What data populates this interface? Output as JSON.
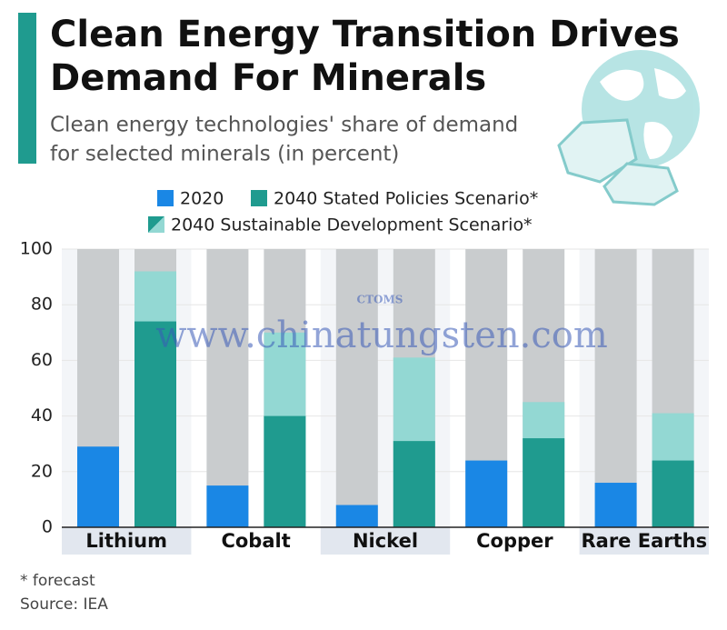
{
  "chart_data": {
    "type": "bar",
    "title": [
      "Clean Energy Transition Drives",
      "Demand For Minerals"
    ],
    "subtitle": [
      "Clean energy technologies' share of demand",
      "for selected minerals (in percent)"
    ],
    "categories": [
      "Lithium",
      "Cobalt",
      "Nickel",
      "Copper",
      "Rare Earths"
    ],
    "series": [
      {
        "name": "2020",
        "color": "#1a87e5",
        "values": [
          29,
          15,
          8,
          24,
          16
        ]
      },
      {
        "name": "2040 Stated Policies Scenario*",
        "color": "#1f9b8f",
        "values": [
          74,
          40,
          31,
          32,
          24
        ]
      },
      {
        "name": "2040 Sustainable Development Scenario*",
        "color": "#93d8d3",
        "values": [
          92,
          70,
          61,
          45,
          41
        ]
      }
    ],
    "ylim": [
      0,
      100
    ],
    "yticks": [
      0,
      20,
      40,
      60,
      80,
      100
    ],
    "grid": true,
    "footnote": "* forecast",
    "source": "Source: IEA",
    "watermark": [
      "www.chinatungsten.com",
      "CTOMS"
    ]
  }
}
